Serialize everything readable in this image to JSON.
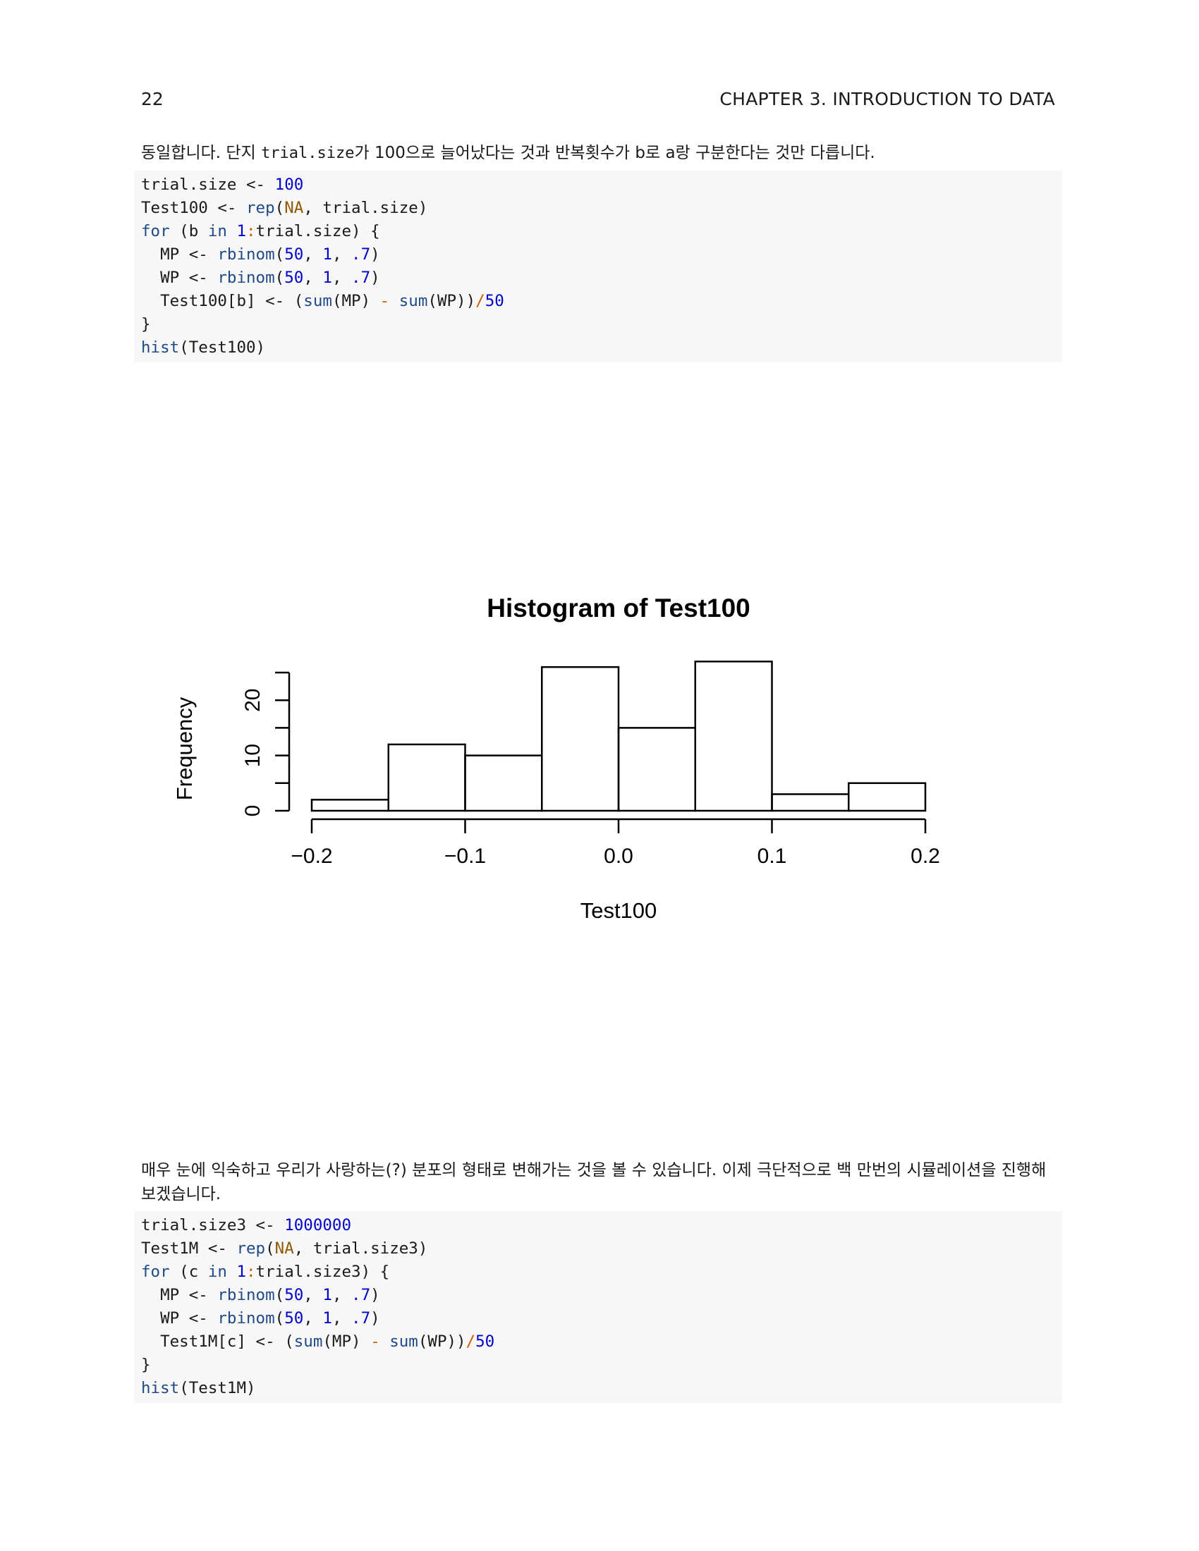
{
  "header": {
    "page_number": "22",
    "chapter": "CHAPTER 3.  INTRODUCTION TO DATA"
  },
  "para1": {
    "before": "동일합니다. 단지 ",
    "code": "trial.size",
    "after": "가 100으로 늘어났다는 것과 반복횟수가 b로 a랑 구분한다는 것만 다릅니다."
  },
  "code1": [
    [
      [
        "trial.size <- ",
        ""
      ],
      [
        "100",
        "num"
      ]
    ],
    [
      [
        "Test100 <- ",
        ""
      ],
      [
        "rep",
        "fn"
      ],
      [
        "(",
        ""
      ],
      [
        "NA",
        "cn"
      ],
      [
        ", trial.size)",
        ""
      ]
    ],
    [
      [
        "for",
        "kw"
      ],
      [
        " (b ",
        ""
      ],
      [
        "in",
        "kw"
      ],
      [
        " ",
        ""
      ],
      [
        "1",
        "num"
      ],
      [
        ":",
        "op"
      ],
      [
        "trial.size) {",
        ""
      ]
    ],
    [
      [
        "  MP <- ",
        ""
      ],
      [
        "rbinom",
        "fn"
      ],
      [
        "(",
        ""
      ],
      [
        "50",
        "num"
      ],
      [
        ", ",
        ""
      ],
      [
        "1",
        "num"
      ],
      [
        ", ",
        ""
      ],
      [
        ".7",
        "num"
      ],
      [
        ")",
        ""
      ]
    ],
    [
      [
        "  WP <- ",
        ""
      ],
      [
        "rbinom",
        "fn"
      ],
      [
        "(",
        ""
      ],
      [
        "50",
        "num"
      ],
      [
        ", ",
        ""
      ],
      [
        "1",
        "num"
      ],
      [
        ", ",
        ""
      ],
      [
        ".7",
        "num"
      ],
      [
        ")",
        ""
      ]
    ],
    [
      [
        "  Test100[b] <- (",
        ""
      ],
      [
        "sum",
        "fn"
      ],
      [
        "(MP) ",
        ""
      ],
      [
        "-",
        "op"
      ],
      [
        " ",
        ""
      ],
      [
        "sum",
        "fn"
      ],
      [
        "(WP))",
        ""
      ],
      [
        "/",
        "op"
      ],
      [
        "50",
        "num"
      ]
    ],
    [
      [
        "}",
        ""
      ]
    ],
    [
      [
        "hist",
        "fn"
      ],
      [
        "(Test100)",
        ""
      ]
    ]
  ],
  "chart_data": {
    "type": "bar",
    "title": "Histogram of Test100",
    "xlabel": "Test100",
    "ylabel": "Frequency",
    "bin_edges": [
      -0.2,
      -0.15,
      -0.1,
      -0.05,
      0.0,
      0.05,
      0.1,
      0.15,
      0.2
    ],
    "values": [
      2,
      12,
      10,
      26,
      15,
      27,
      3,
      5
    ],
    "xlim": [
      -0.2,
      0.2
    ],
    "ylim": [
      0,
      25
    ],
    "x_ticks": [
      -0.2,
      -0.1,
      0.0,
      0.1,
      0.2
    ],
    "x_tick_labels": [
      "−0.2",
      "−0.1",
      "0.0",
      "0.1",
      "0.2"
    ],
    "y_ticks": [
      0,
      5,
      10,
      15,
      20,
      25
    ],
    "y_tick_labels": [
      "0",
      "10",
      "20"
    ],
    "y_labeled_ticks": [
      0,
      10,
      20
    ],
    "grid": false
  },
  "para2": "매우 눈에 익숙하고 우리가 사랑하는(?) 분포의 형태로 변해가는 것을 볼 수 있습니다. 이제 극단적으로 백 만번의 시뮬레이션을 진행해보겠습니다.",
  "code2": [
    [
      [
        "trial.size3 <- ",
        ""
      ],
      [
        "1000000",
        "num"
      ]
    ],
    [
      [
        "Test1M <- ",
        ""
      ],
      [
        "rep",
        "fn"
      ],
      [
        "(",
        ""
      ],
      [
        "NA",
        "cn"
      ],
      [
        ", trial.size3)",
        ""
      ]
    ],
    [
      [
        "for",
        "kw"
      ],
      [
        " (c ",
        ""
      ],
      [
        "in",
        "kw"
      ],
      [
        " ",
        ""
      ],
      [
        "1",
        "num"
      ],
      [
        ":",
        "op"
      ],
      [
        "trial.size3) {",
        ""
      ]
    ],
    [
      [
        "  MP <- ",
        ""
      ],
      [
        "rbinom",
        "fn"
      ],
      [
        "(",
        ""
      ],
      [
        "50",
        "num"
      ],
      [
        ", ",
        ""
      ],
      [
        "1",
        "num"
      ],
      [
        ", ",
        ""
      ],
      [
        ".7",
        "num"
      ],
      [
        ")",
        ""
      ]
    ],
    [
      [
        "  WP <- ",
        ""
      ],
      [
        "rbinom",
        "fn"
      ],
      [
        "(",
        ""
      ],
      [
        "50",
        "num"
      ],
      [
        ", ",
        ""
      ],
      [
        "1",
        "num"
      ],
      [
        ", ",
        ""
      ],
      [
        ".7",
        "num"
      ],
      [
        ")",
        ""
      ]
    ],
    [
      [
        "  Test1M[c] <- (",
        ""
      ],
      [
        "sum",
        "fn"
      ],
      [
        "(MP) ",
        ""
      ],
      [
        "-",
        "op"
      ],
      [
        " ",
        ""
      ],
      [
        "sum",
        "fn"
      ],
      [
        "(WP))",
        ""
      ],
      [
        "/",
        "op"
      ],
      [
        "50",
        "num"
      ]
    ],
    [
      [
        "}",
        ""
      ]
    ],
    [
      [
        "hist",
        "fn"
      ],
      [
        "(Test1M)",
        ""
      ]
    ]
  ]
}
